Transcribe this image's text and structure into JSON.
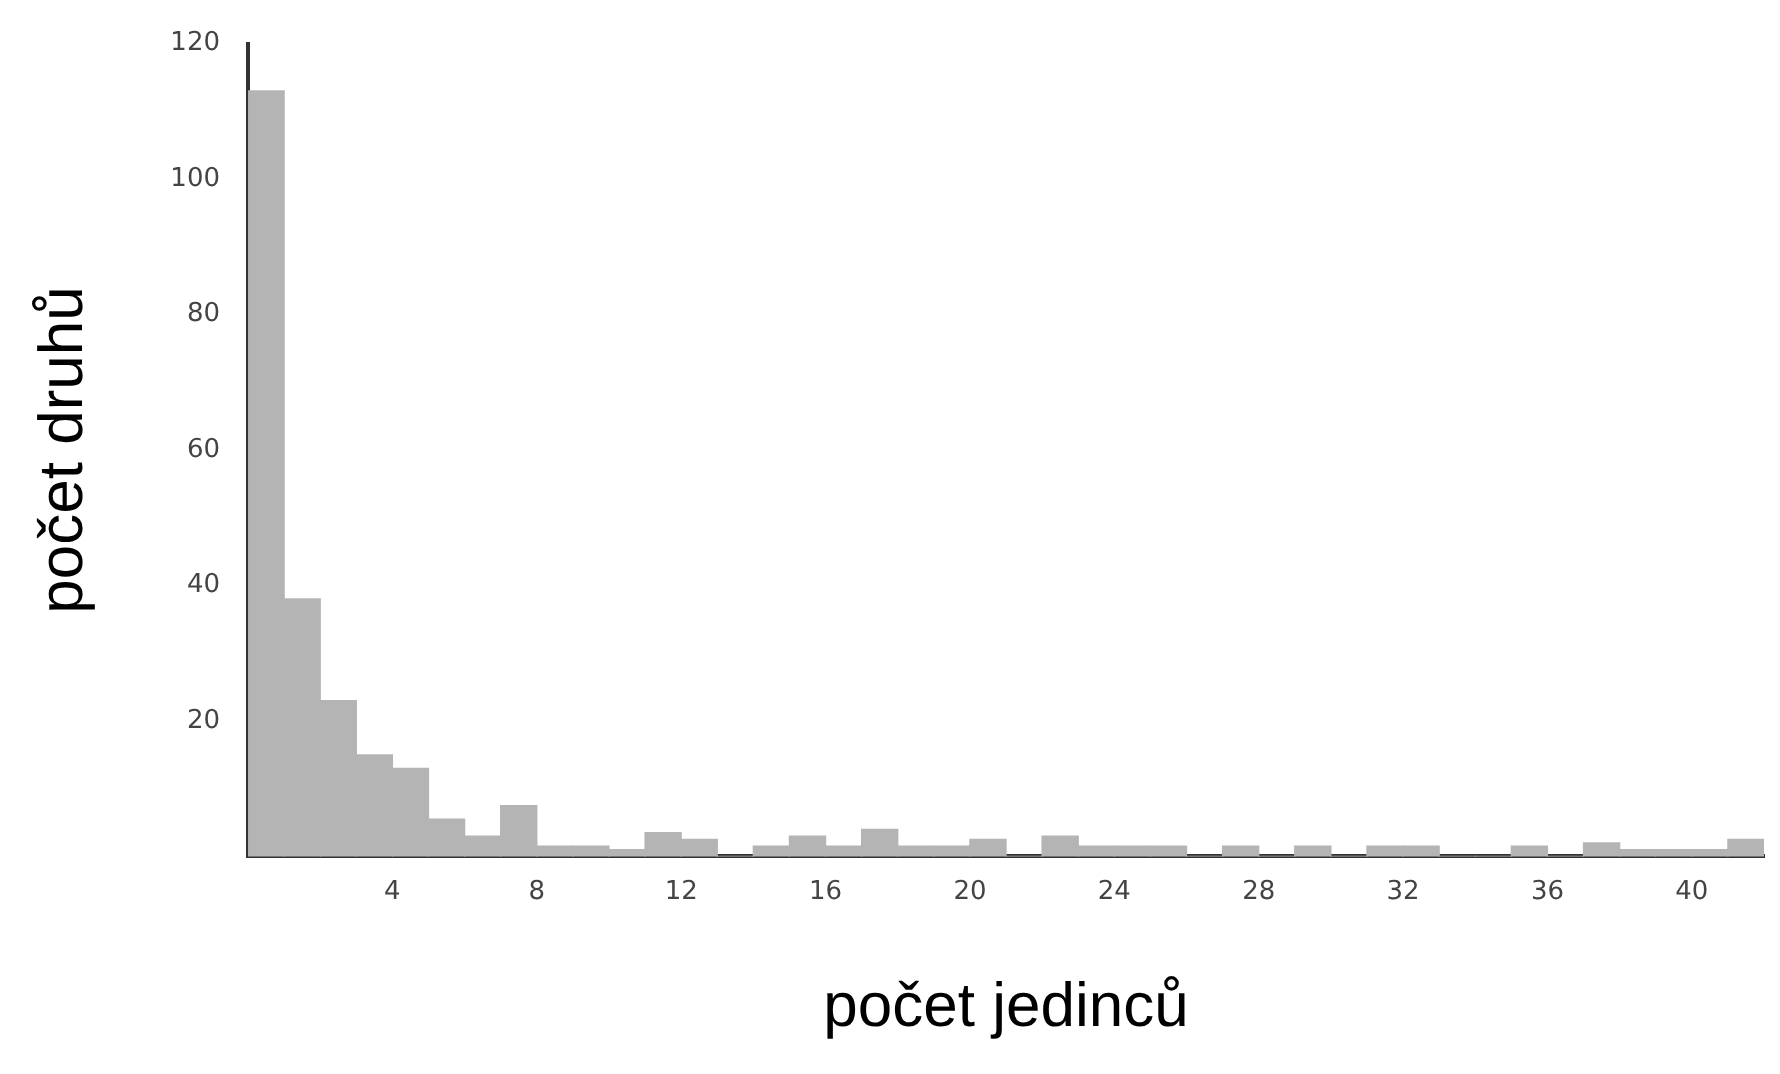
{
  "chart_data": {
    "type": "histogram",
    "xlabel": "počet jedinců",
    "ylabel": "počet druhů",
    "bins": [
      0,
      1,
      2,
      3,
      4,
      5,
      6,
      7,
      8,
      9,
      10,
      11,
      12,
      13,
      14,
      15,
      16,
      17,
      18,
      19,
      20,
      21,
      22,
      23,
      24,
      25,
      26,
      27,
      28,
      29,
      30,
      31,
      32,
      33,
      34,
      35,
      36,
      37,
      38,
      39,
      40,
      41,
      42
    ],
    "values": [
      113,
      38,
      23,
      15,
      13,
      5.5,
      3,
      7.5,
      1.5,
      1.5,
      1,
      3.5,
      2.5,
      0,
      1.5,
      3,
      1.5,
      4,
      1.5,
      1.5,
      2.5,
      0,
      3,
      1.5,
      1.5,
      1.5,
      0,
      1.5,
      0,
      1.5,
      0,
      1.5,
      1.5,
      0,
      0,
      1.5,
      0,
      2,
      1,
      1,
      1,
      2.5
    ],
    "color": "#b4b4b4",
    "xlim": [
      0,
      42
    ],
    "xticks": [
      4,
      8,
      12,
      16,
      20,
      24,
      28,
      32,
      36,
      40
    ],
    "ylim": [
      0,
      120
    ],
    "yticks": [
      20,
      40,
      60,
      80,
      100,
      120
    ],
    "grid": false,
    "legend": false
  }
}
